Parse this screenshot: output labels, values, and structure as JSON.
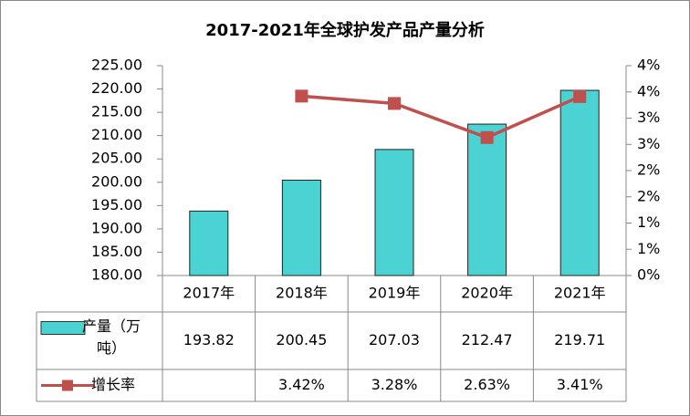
{
  "chart_data": {
    "type": "bar-line",
    "title": "2017-2021年全球护发产品产量分析",
    "categories": [
      "2017年",
      "2018年",
      "2019年",
      "2020年",
      "2021年"
    ],
    "series": [
      {
        "name": "产量（万吨）",
        "type": "bar",
        "color": "#4bd2d2",
        "values": [
          193.82,
          200.45,
          207.03,
          212.47,
          219.71
        ]
      },
      {
        "name": "增长率",
        "type": "line",
        "axis": "y2",
        "color": "#c0504d",
        "values": [
          null,
          3.42,
          3.28,
          2.63,
          3.41
        ],
        "value_labels": [
          null,
          "3.42%",
          "3.28%",
          "2.63%",
          "3.41%"
        ]
      }
    ],
    "ylim": [
      180,
      225
    ],
    "yticks": [
      {
        "value": 180,
        "label": "180.00"
      },
      {
        "value": 185,
        "label": "185.00"
      },
      {
        "value": 190,
        "label": "190.00"
      },
      {
        "value": 195,
        "label": "195.00"
      },
      {
        "value": 200,
        "label": "200.00"
      },
      {
        "value": 205,
        "label": "205.00"
      },
      {
        "value": 210,
        "label": "210.00"
      },
      {
        "value": 215,
        "label": "215.00"
      },
      {
        "value": 220,
        "label": "220.00"
      },
      {
        "value": 225,
        "label": "225.00"
      }
    ],
    "y2lim": [
      0,
      4
    ],
    "y2ticks": [
      {
        "value": 0,
        "label": "0%"
      },
      {
        "value": 0.5,
        "label": "1%"
      },
      {
        "value": 1,
        "label": "1%"
      },
      {
        "value": 1.5,
        "label": "2%"
      },
      {
        "value": 2,
        "label": "2%"
      },
      {
        "value": 2.5,
        "label": "3%"
      },
      {
        "value": 3,
        "label": "3%"
      },
      {
        "value": 3.5,
        "label": "4%"
      },
      {
        "value": 4,
        "label": "4%"
      }
    ],
    "data_table": true
  }
}
